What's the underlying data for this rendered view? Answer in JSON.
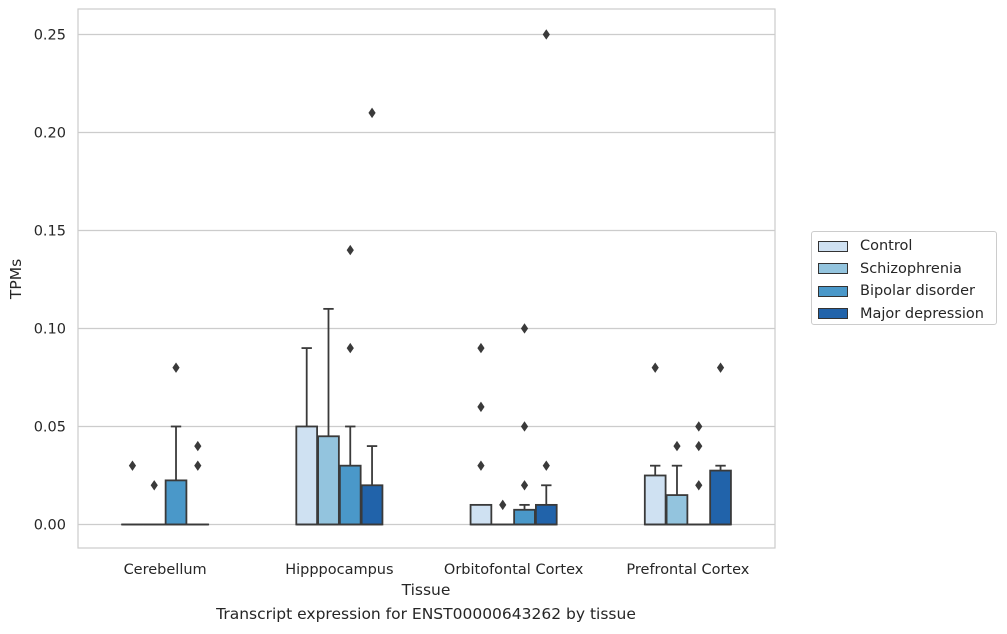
{
  "chart_data": {
    "type": "box",
    "title": "",
    "caption": "Transcript expression for ENST00000643262 by tissue",
    "xlabel": "Tissue",
    "ylabel": "TPMs",
    "ylim": [
      -0.012,
      0.263
    ],
    "yticks": [
      0.0,
      0.05,
      0.1,
      0.15,
      0.2,
      0.25
    ],
    "ytick_labels": [
      "0.00",
      "0.05",
      "0.10",
      "0.15",
      "0.20",
      "0.25"
    ],
    "grid": true,
    "legend_position": "right",
    "categories": [
      "Cerebellum",
      "Hipppocampus",
      "Orbitofontal Cortex",
      "Prefrontal Cortex"
    ],
    "series": [
      {
        "name": "Control",
        "color": "#cfe1f2",
        "boxes": [
          {
            "q1": 0,
            "median": 0,
            "q3": 0,
            "whisker_low": 0,
            "whisker_high": 0,
            "outliers": [
              0.03
            ]
          },
          {
            "q1": 0,
            "median": 0,
            "q3": 0.05,
            "whisker_low": 0,
            "whisker_high": 0.09,
            "outliers": []
          },
          {
            "q1": 0,
            "median": 0,
            "q3": 0.01,
            "whisker_low": 0,
            "whisker_high": 0.01,
            "outliers": [
              0.03,
              0.06,
              0.09
            ]
          },
          {
            "q1": 0,
            "median": 0,
            "q3": 0.025,
            "whisker_low": 0,
            "whisker_high": 0.03,
            "outliers": [
              0.08
            ]
          }
        ]
      },
      {
        "name": "Schizophrenia",
        "color": "#93c4de",
        "boxes": [
          {
            "q1": 0,
            "median": 0,
            "q3": 0,
            "whisker_low": 0,
            "whisker_high": 0,
            "outliers": [
              0.02
            ]
          },
          {
            "q1": 0,
            "median": 0,
            "q3": 0.045,
            "whisker_low": 0,
            "whisker_high": 0.11,
            "outliers": []
          },
          {
            "q1": 0,
            "median": 0,
            "q3": 0,
            "whisker_low": 0,
            "whisker_high": 0,
            "outliers": [
              0.01
            ]
          },
          {
            "q1": 0,
            "median": 0,
            "q3": 0.015,
            "whisker_low": 0,
            "whisker_high": 0.03,
            "outliers": [
              0.04
            ]
          }
        ]
      },
      {
        "name": "Bipolar disorder",
        "color": "#4a98c9",
        "boxes": [
          {
            "q1": 0,
            "median": 0,
            "q3": 0.0225,
            "whisker_low": 0,
            "whisker_high": 0.05,
            "outliers": [
              0.08
            ]
          },
          {
            "q1": 0,
            "median": 0,
            "q3": 0.03,
            "whisker_low": 0,
            "whisker_high": 0.05,
            "outliers": [
              0.09,
              0.14
            ]
          },
          {
            "q1": 0,
            "median": 0,
            "q3": 0.0075,
            "whisker_low": 0,
            "whisker_high": 0.01,
            "outliers": [
              0.02,
              0.05,
              0.1
            ]
          },
          {
            "q1": 0,
            "median": 0,
            "q3": 0,
            "whisker_low": 0,
            "whisker_high": 0,
            "outliers": [
              0.02,
              0.04,
              0.05
            ]
          }
        ]
      },
      {
        "name": "Major depression",
        "color": "#2163aa",
        "boxes": [
          {
            "q1": 0,
            "median": 0,
            "q3": 0,
            "whisker_low": 0,
            "whisker_high": 0,
            "outliers": [
              0.03,
              0.04
            ]
          },
          {
            "q1": 0,
            "median": 0,
            "q3": 0.02,
            "whisker_low": 0,
            "whisker_high": 0.04,
            "outliers": [
              0.21
            ]
          },
          {
            "q1": 0,
            "median": 0,
            "q3": 0.01,
            "whisker_low": 0,
            "whisker_high": 0.02,
            "outliers": [
              0.03,
              0.25
            ]
          },
          {
            "q1": 0,
            "median": 0,
            "q3": 0.0275,
            "whisker_low": 0,
            "whisker_high": 0.03,
            "outliers": [
              0.08
            ]
          }
        ]
      }
    ]
  }
}
